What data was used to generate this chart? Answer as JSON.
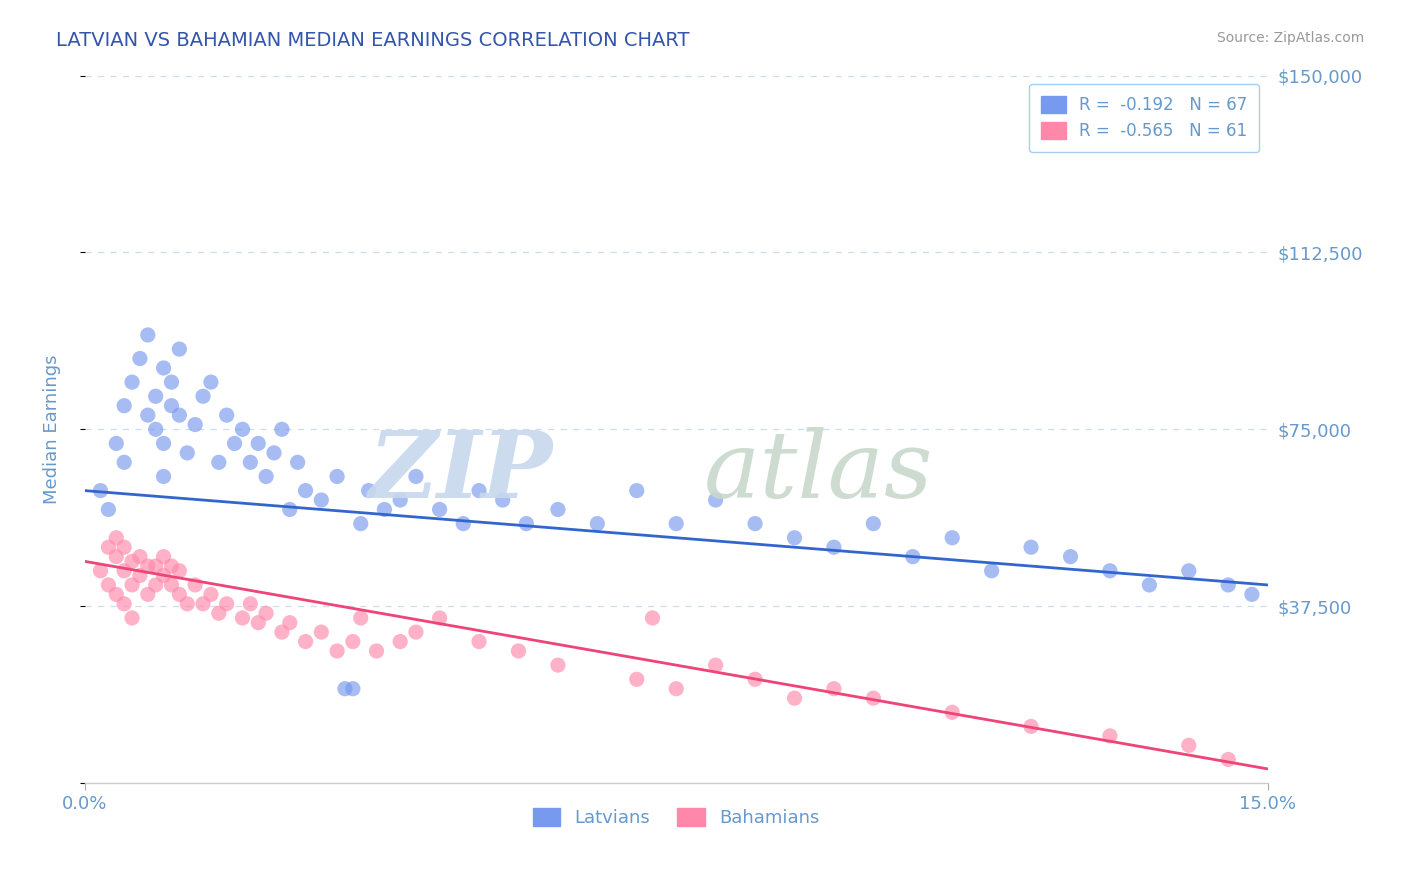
{
  "title": "LATVIAN VS BAHAMIAN MEDIAN EARNINGS CORRELATION CHART",
  "source": "Source: ZipAtlas.com",
  "ylabel": "Median Earnings",
  "yticks": [
    0,
    37500,
    75000,
    112500,
    150000
  ],
  "ytick_labels": [
    "",
    "$37,500",
    "$75,000",
    "$112,500",
    "$150,000"
  ],
  "xmin": 0.0,
  "xmax": 15.0,
  "ymin": 0,
  "ymax": 150000,
  "latvian_color": "#7799ee",
  "bahamian_color": "#ff88aa",
  "latvian_line_color": "#3366cc",
  "bahamian_line_color": "#ee4477",
  "R_latvian": -0.192,
  "N_latvian": 67,
  "R_bahamian": -0.565,
  "N_bahamian": 61,
  "background_color": "#ffffff",
  "title_color": "#3355aa",
  "tick_color": "#6699cc",
  "grid_color": "#ccddee",
  "latvian_x": [
    0.2,
    0.3,
    0.4,
    0.5,
    0.5,
    0.6,
    0.7,
    0.8,
    0.8,
    0.9,
    0.9,
    1.0,
    1.0,
    1.0,
    1.1,
    1.1,
    1.2,
    1.2,
    1.3,
    1.4,
    1.5,
    1.6,
    1.7,
    1.8,
    1.9,
    2.0,
    2.1,
    2.2,
    2.3,
    2.4,
    2.5,
    2.7,
    2.8,
    3.0,
    3.2,
    3.5,
    3.6,
    3.8,
    4.0,
    4.2,
    4.5,
    4.8,
    5.0,
    5.3,
    5.6,
    6.0,
    6.5,
    7.0,
    7.5,
    8.0,
    8.5,
    9.0,
    9.5,
    10.0,
    10.5,
    11.0,
    11.5,
    12.0,
    12.5,
    13.0,
    13.5,
    14.0,
    14.5,
    14.8,
    3.3,
    3.4,
    2.6
  ],
  "latvian_y": [
    62000,
    58000,
    72000,
    80000,
    68000,
    85000,
    90000,
    78000,
    95000,
    75000,
    82000,
    65000,
    72000,
    88000,
    80000,
    85000,
    78000,
    92000,
    70000,
    76000,
    82000,
    85000,
    68000,
    78000,
    72000,
    75000,
    68000,
    72000,
    65000,
    70000,
    75000,
    68000,
    62000,
    60000,
    65000,
    55000,
    62000,
    58000,
    60000,
    65000,
    58000,
    55000,
    62000,
    60000,
    55000,
    58000,
    55000,
    62000,
    55000,
    60000,
    55000,
    52000,
    50000,
    55000,
    48000,
    52000,
    45000,
    50000,
    48000,
    45000,
    42000,
    45000,
    42000,
    40000,
    20000,
    20000,
    58000
  ],
  "bahamian_x": [
    0.2,
    0.3,
    0.3,
    0.4,
    0.4,
    0.5,
    0.5,
    0.6,
    0.6,
    0.7,
    0.7,
    0.8,
    0.8,
    0.9,
    0.9,
    1.0,
    1.0,
    1.1,
    1.1,
    1.2,
    1.2,
    1.3,
    1.4,
    1.5,
    1.6,
    1.7,
    1.8,
    2.0,
    2.1,
    2.2,
    2.3,
    2.5,
    2.6,
    2.8,
    3.0,
    3.2,
    3.4,
    3.5,
    3.7,
    4.0,
    4.2,
    4.5,
    5.0,
    5.5,
    6.0,
    7.0,
    7.5,
    8.0,
    8.5,
    9.0,
    9.5,
    10.0,
    11.0,
    12.0,
    13.0,
    14.0,
    14.5,
    0.5,
    0.6,
    0.4,
    7.2
  ],
  "bahamian_y": [
    45000,
    50000,
    42000,
    48000,
    52000,
    45000,
    50000,
    47000,
    42000,
    48000,
    44000,
    40000,
    46000,
    42000,
    46000,
    44000,
    48000,
    42000,
    46000,
    40000,
    45000,
    38000,
    42000,
    38000,
    40000,
    36000,
    38000,
    35000,
    38000,
    34000,
    36000,
    32000,
    34000,
    30000,
    32000,
    28000,
    30000,
    35000,
    28000,
    30000,
    32000,
    35000,
    30000,
    28000,
    25000,
    22000,
    20000,
    25000,
    22000,
    18000,
    20000,
    18000,
    15000,
    12000,
    10000,
    8000,
    5000,
    38000,
    35000,
    40000,
    35000
  ]
}
